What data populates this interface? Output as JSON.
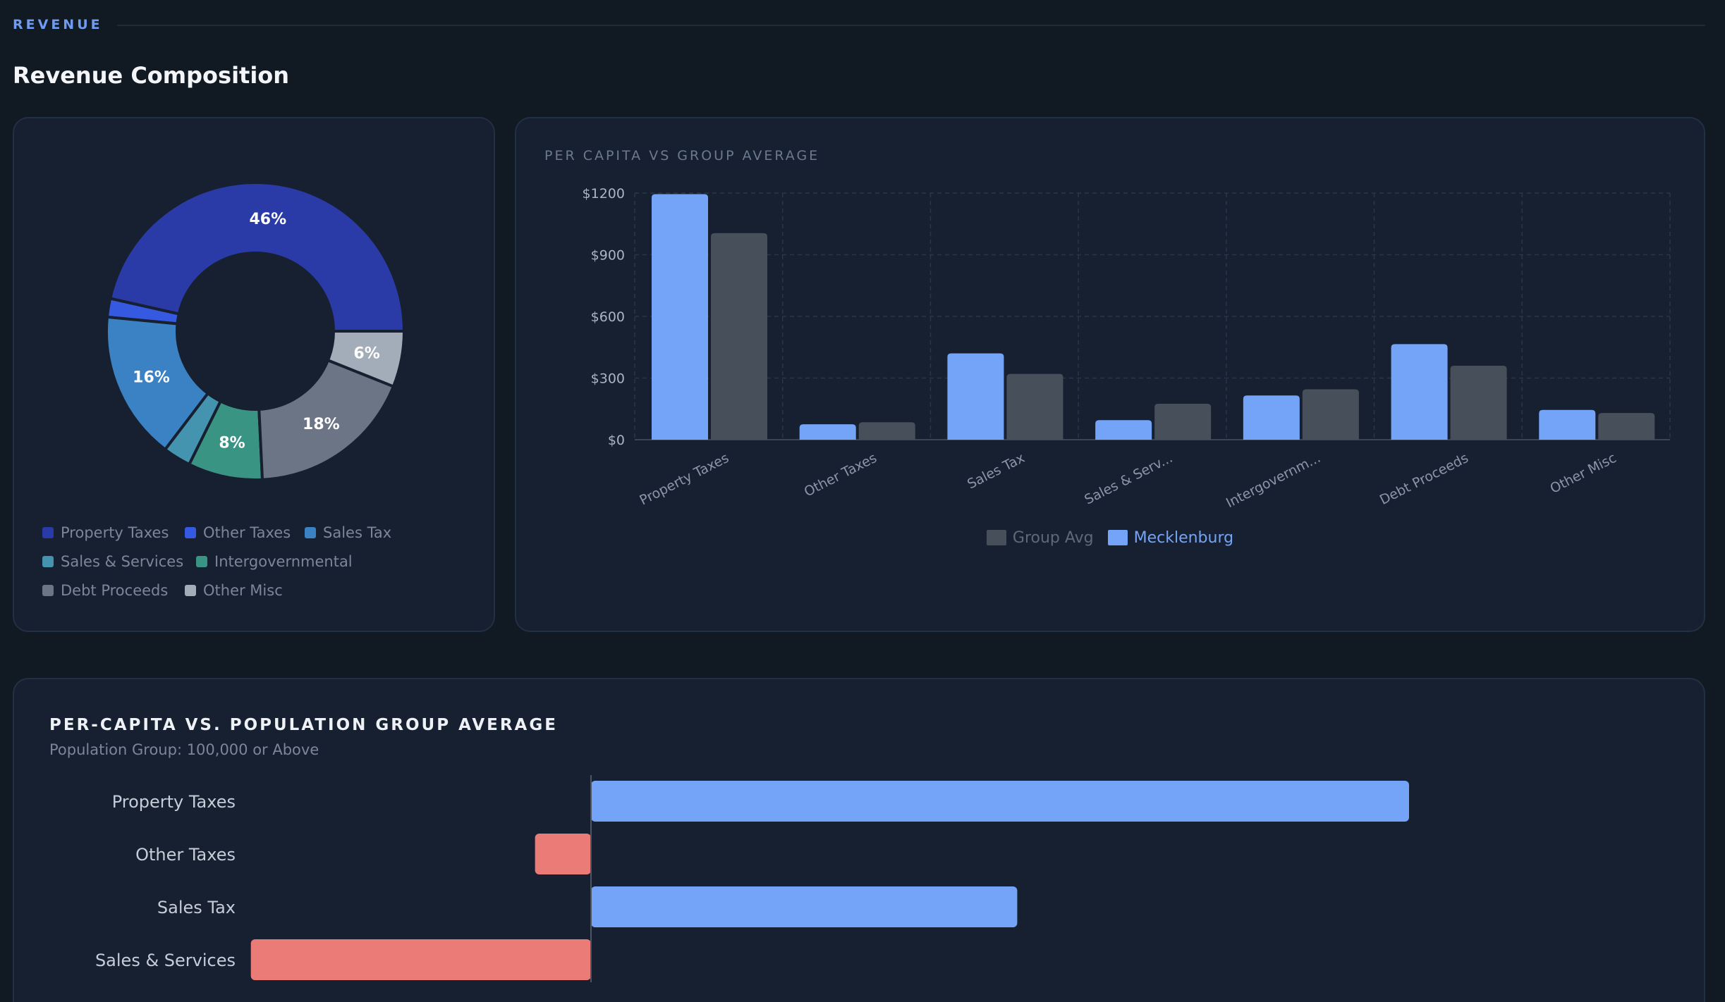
{
  "section": {
    "label": "REVENUE"
  },
  "page": {
    "title": "Revenue Composition"
  },
  "colors": {
    "property_taxes": "#2a3ba8",
    "other_taxes": "#3559e0",
    "sales_tax": "#3b82c4",
    "sales_services": "#4494b0",
    "intergovernmental": "#3a9484",
    "debt_proceeds": "#6b7585",
    "other_misc": "#a3acb9",
    "mecklenburg": "#74a4f7",
    "group_avg": "#474f5a",
    "negative": "#ea7b76"
  },
  "donut": {
    "legend": [
      {
        "label": "Property Taxes",
        "color": "#2a3ba8"
      },
      {
        "label": "Other Taxes",
        "color": "#3559e0"
      },
      {
        "label": "Sales Tax",
        "color": "#3b82c4"
      },
      {
        "label": "Sales & Services",
        "color": "#4494b0"
      },
      {
        "label": "Intergovernmental",
        "color": "#3a9484"
      },
      {
        "label": "Debt Proceeds",
        "color": "#6b7585"
      },
      {
        "label": "Other Misc",
        "color": "#a3acb9"
      }
    ]
  },
  "bar_card": {
    "title": "PER CAPITA VS GROUP AVERAGE",
    "legend": [
      {
        "label": "Group Avg",
        "color": "#474f5a",
        "text_color": "#5e6877"
      },
      {
        "label": "Mecklenburg",
        "color": "#74a4f7",
        "text_color": "#74a4f7"
      }
    ]
  },
  "hbar_card": {
    "title": "PER-CAPITA VS. POPULATION GROUP AVERAGE",
    "subtitle": "Population Group: 100,000 or Above"
  },
  "chart_data": [
    {
      "type": "pie",
      "variant": "donut",
      "categories": [
        "Property Taxes",
        "Other Taxes",
        "Sales Tax",
        "Sales & Services",
        "Intergovernmental",
        "Debt Proceeds",
        "Other Misc"
      ],
      "values": [
        46,
        2,
        16,
        3,
        8,
        18,
        6
      ],
      "data_labels": [
        "46%",
        "",
        "16%",
        "",
        "8%",
        "18%",
        "6%"
      ],
      "legend_position": "bottom"
    },
    {
      "type": "bar",
      "title": "PER CAPITA VS GROUP AVERAGE",
      "categories": [
        "Property Taxes",
        "Other Taxes",
        "Sales Tax",
        "Sales & Serv...",
        "Intergovernm...",
        "Debt Proceeds",
        "Other Misc"
      ],
      "series": [
        {
          "name": "Mecklenburg",
          "values": [
            1195,
            75,
            420,
            95,
            215,
            465,
            145
          ]
        },
        {
          "name": "Group Avg",
          "values": [
            1005,
            85,
            320,
            175,
            245,
            360,
            130
          ]
        }
      ],
      "yticks": [
        "$0",
        "$300",
        "$600",
        "$900",
        "$1200"
      ],
      "ylim": [
        0,
        1200
      ],
      "grid": true,
      "legend_position": "bottom"
    },
    {
      "type": "bar",
      "orientation": "horizontal",
      "title": "PER-CAPITA VS. POPULATION GROUP AVERAGE",
      "subtitle": "Population Group: 100,000 or Above",
      "categories": [
        "Property Taxes",
        "Other Taxes",
        "Sales Tax",
        "Sales & Services"
      ],
      "values": [
        190,
        -13,
        99,
        -79
      ]
    }
  ]
}
